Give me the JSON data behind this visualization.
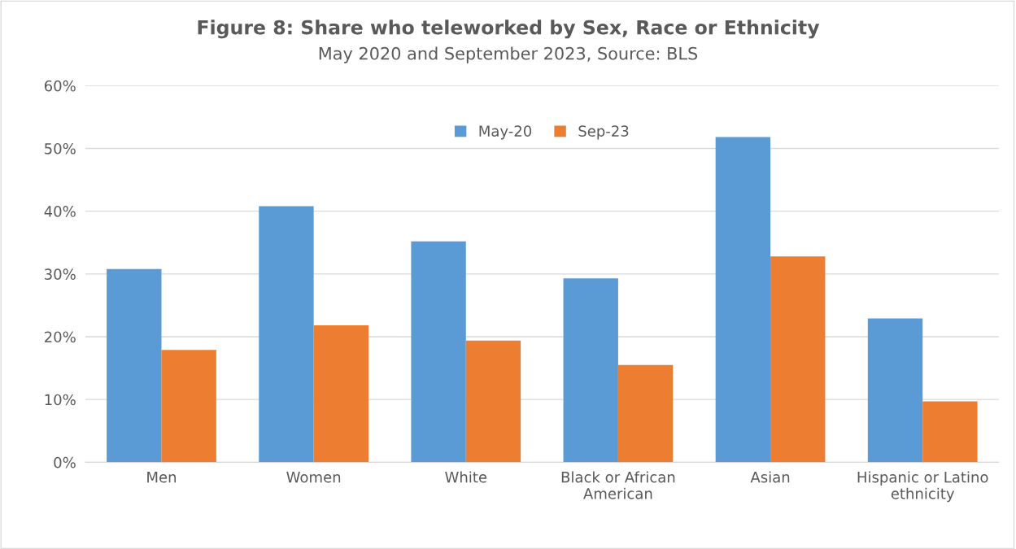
{
  "chart_data": {
    "type": "bar",
    "title": "Figure 8: Share who teleworked by Sex, Race or Ethnicity",
    "subtitle": "May 2020 and September 2023, Source: BLS",
    "categories": [
      "Men",
      "Women",
      "White",
      "Black or African\nAmerican",
      "Asian",
      "Hispanic or Latino\nethnicity"
    ],
    "series": [
      {
        "name": "May-20",
        "color": "#5b9bd5",
        "values": [
          30.8,
          40.8,
          35.2,
          29.3,
          51.8,
          22.9
        ]
      },
      {
        "name": "Sep-23",
        "color": "#ed7d31",
        "values": [
          17.9,
          21.8,
          19.4,
          15.5,
          32.8,
          9.7
        ]
      }
    ],
    "ylim": [
      0,
      60
    ],
    "yticks": [
      {
        "value": 0,
        "label": "0%"
      },
      {
        "value": 10,
        "label": "10%"
      },
      {
        "value": 20,
        "label": "20%"
      },
      {
        "value": 30,
        "label": "30%"
      },
      {
        "value": 40,
        "label": "40%"
      },
      {
        "value": 50,
        "label": "50%"
      },
      {
        "value": 60,
        "label": "60%"
      }
    ],
    "grid": "y",
    "legend": "top"
  }
}
